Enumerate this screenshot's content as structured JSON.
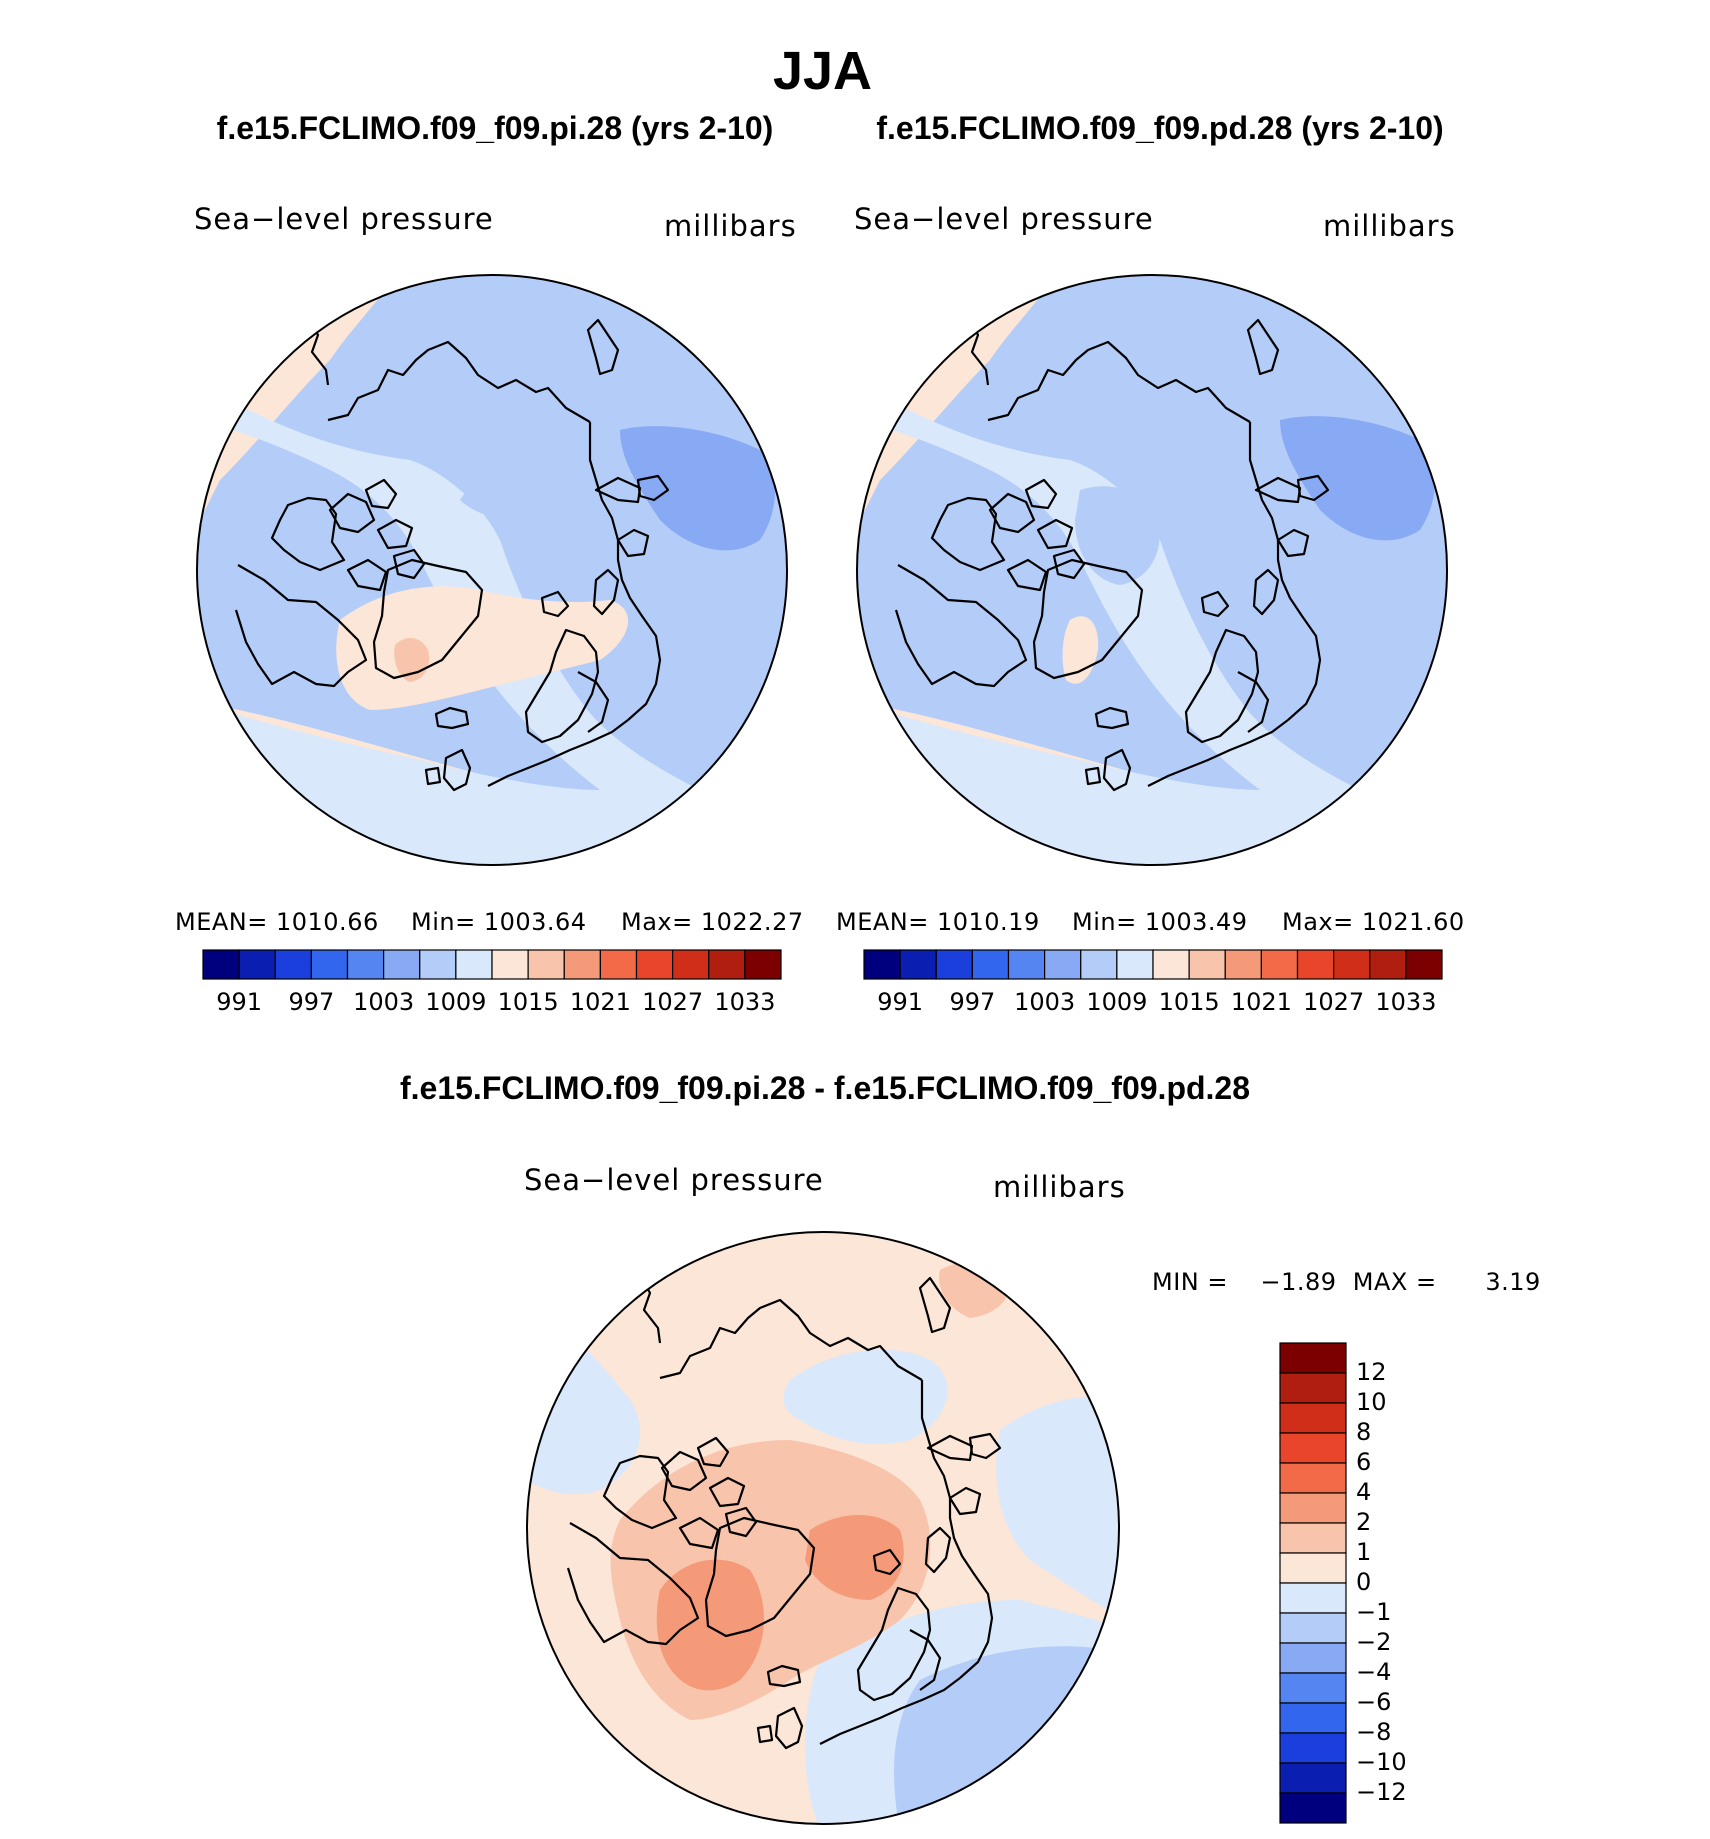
{
  "main_title": "JJA",
  "panels": [
    {
      "title": "f.e15.FCLIMO.f09_f09.pi.28 (yrs 2-10)",
      "variable": "Sea−level pressure",
      "units": "millibars",
      "stats": {
        "mean": "MEAN=  1010.66",
        "min": "Min=  1003.64",
        "max": "Max=  1022.27"
      },
      "colorbar_ticks": [
        "991",
        "997",
        "1003",
        "1009",
        "1015",
        "1021",
        "1027",
        "1033"
      ]
    },
    {
      "title": "f.e15.FCLIMO.f09_f09.pd.28 (yrs 2-10)",
      "variable": "Sea−level pressure",
      "units": "millibars",
      "stats": {
        "mean": "MEAN=  1010.19",
        "min": "Min=  1003.49",
        "max": "Max=  1021.60"
      },
      "colorbar_ticks": [
        "991",
        "997",
        "1003",
        "1009",
        "1015",
        "1021",
        "1027",
        "1033"
      ]
    }
  ],
  "difference": {
    "title": "f.e15.FCLIMO.f09_f09.pi.28 - f.e15.FCLIMO.f09_f09.pd.28",
    "variable": "Sea−level pressure",
    "units": "millibars",
    "minmax": "MIN =    −1.89  MAX =      3.19",
    "colorbar_ticks": [
      "12",
      "10",
      "8",
      "6",
      "4",
      "2",
      "1",
      "0",
      "−1",
      "−2",
      "−4",
      "−6",
      "−8",
      "−10",
      "−12"
    ]
  },
  "palettes": {
    "absolute": [
      "#00007f",
      "#0a1fb2",
      "#1a3fdc",
      "#3366ee",
      "#5585f0",
      "#88aaf4",
      "#b4cdf8",
      "#d9e8fb",
      "#fce6d8",
      "#f9c4ac",
      "#f59a78",
      "#f26a48",
      "#e8452a",
      "#d02e18",
      "#b01e10",
      "#7d0000"
    ],
    "difference": [
      "#00007f",
      "#0a1fb2",
      "#1a3fdc",
      "#3366ee",
      "#5585f0",
      "#88aaf4",
      "#b4cdf8",
      "#d9e8fb",
      "#fce6d8",
      "#f9c4ac",
      "#f59a78",
      "#f26a48",
      "#e8452a",
      "#d02e18",
      "#b01e10",
      "#7d0000"
    ]
  }
}
